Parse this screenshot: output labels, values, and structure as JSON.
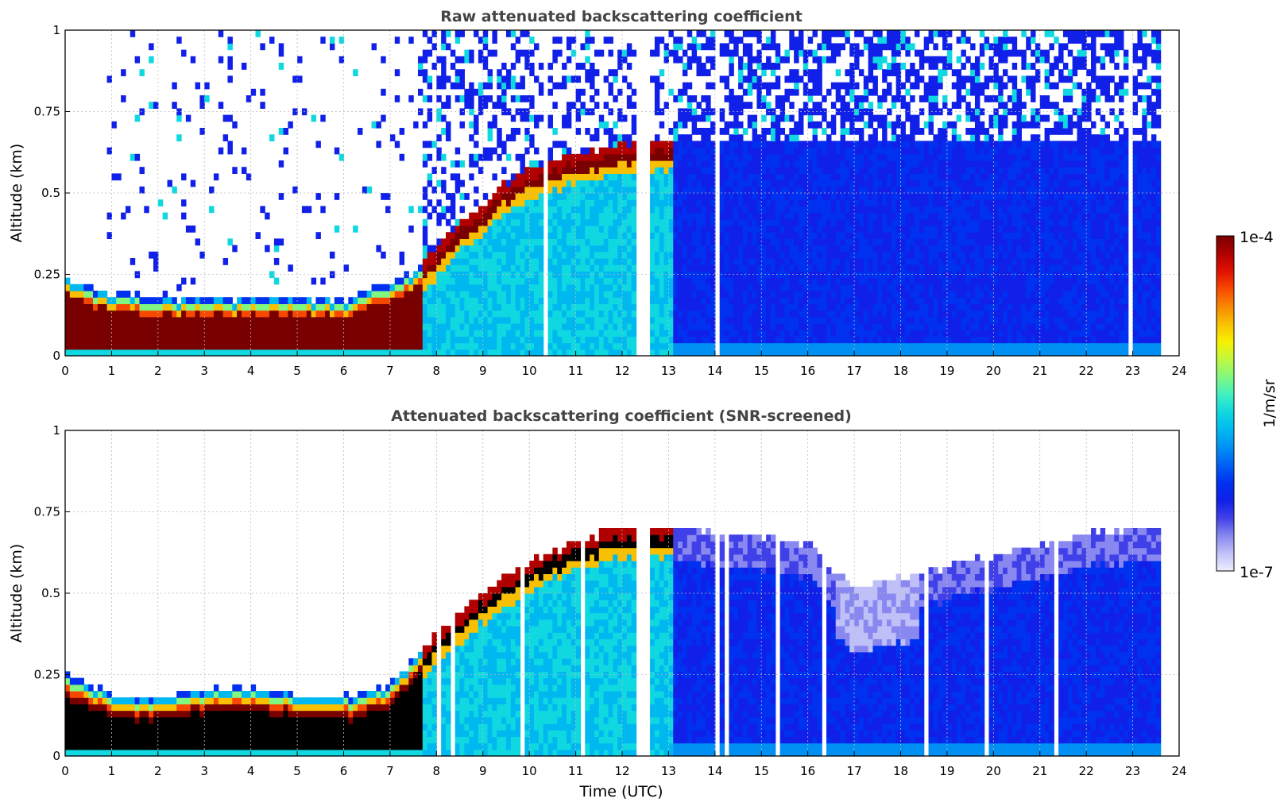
{
  "chart_data": [
    {
      "type": "heatmap",
      "title": "Raw attenuated backscattering coefficient",
      "xlabel": "",
      "ylabel": "Altitude (km)",
      "xlim": [
        0,
        24
      ],
      "ylim": [
        0,
        1
      ],
      "xticks": [
        "0",
        "1",
        "2",
        "3",
        "4",
        "5",
        "6",
        "7",
        "8",
        "9",
        "10",
        "11",
        "12",
        "13",
        "14",
        "15",
        "16",
        "17",
        "18",
        "19",
        "20",
        "21",
        "22",
        "23",
        "24"
      ],
      "yticks": [
        "0",
        "0.25",
        "0.5",
        "0.75",
        "1"
      ],
      "data_end_time": 23.6,
      "screened": false,
      "boundary_layer_top_km": [
        {
          "t": 0,
          "h": 0.24
        },
        {
          "t": 0.5,
          "h": 0.21
        },
        {
          "t": 1,
          "h": 0.19
        },
        {
          "t": 2,
          "h": 0.18
        },
        {
          "t": 3,
          "h": 0.17
        },
        {
          "t": 4,
          "h": 0.18
        },
        {
          "t": 5,
          "h": 0.18
        },
        {
          "t": 6,
          "h": 0.17
        },
        {
          "t": 7,
          "h": 0.22
        },
        {
          "t": 7.5,
          "h": 0.26
        },
        {
          "t": 8,
          "h": 0.33
        },
        {
          "t": 8.5,
          "h": 0.41
        },
        {
          "t": 9,
          "h": 0.47
        },
        {
          "t": 9.5,
          "h": 0.53
        },
        {
          "t": 10,
          "h": 0.57
        },
        {
          "t": 10.5,
          "h": 0.6
        },
        {
          "t": 11,
          "h": 0.62
        },
        {
          "t": 12,
          "h": 0.65
        },
        {
          "t": 13,
          "h": 0.66
        }
      ]
    },
    {
      "type": "heatmap",
      "title": "Attenuated backscattering coefficient (SNR-screened)",
      "xlabel": "Time (UTC)",
      "ylabel": "Altitude (km)",
      "xlim": [
        0,
        24
      ],
      "ylim": [
        0,
        1
      ],
      "xticks": [
        "0",
        "1",
        "2",
        "3",
        "4",
        "5",
        "6",
        "7",
        "8",
        "9",
        "10",
        "11",
        "12",
        "13",
        "14",
        "15",
        "16",
        "17",
        "18",
        "19",
        "20",
        "21",
        "22",
        "23",
        "24"
      ],
      "yticks": [
        "0",
        "0.25",
        "0.5",
        "0.75",
        "1"
      ],
      "data_end_time": 23.6,
      "screened": true,
      "boundary_layer_top_km": [
        {
          "t": 0,
          "h": 0.25
        },
        {
          "t": 1,
          "h": 0.19
        },
        {
          "t": 2,
          "h": 0.18
        },
        {
          "t": 3,
          "h": 0.2
        },
        {
          "t": 4,
          "h": 0.21
        },
        {
          "t": 5,
          "h": 0.19
        },
        {
          "t": 6,
          "h": 0.18
        },
        {
          "t": 7,
          "h": 0.22
        },
        {
          "t": 8,
          "h": 0.38
        },
        {
          "t": 9,
          "h": 0.5
        },
        {
          "t": 10,
          "h": 0.6
        },
        {
          "t": 11,
          "h": 0.66
        },
        {
          "t": 12,
          "h": 0.7
        },
        {
          "t": 13,
          "h": 0.7
        },
        {
          "t": 14,
          "h": 0.68
        },
        {
          "t": 15,
          "h": 0.68
        },
        {
          "t": 16,
          "h": 0.65
        },
        {
          "t": 17,
          "h": 0.52
        },
        {
          "t": 18,
          "h": 0.55
        },
        {
          "t": 19,
          "h": 0.58
        },
        {
          "t": 20,
          "h": 0.62
        },
        {
          "t": 21,
          "h": 0.65
        },
        {
          "t": 22,
          "h": 0.68
        },
        {
          "t": 23,
          "h": 0.7
        }
      ]
    }
  ],
  "colorbar": {
    "label": "1/m/sr",
    "max_label": "1e-4",
    "min_label": "1e-7",
    "colors": [
      "#eeeeff",
      "#c0c0f8",
      "#8888f0",
      "#4040e8",
      "#1020e8",
      "#0030f0",
      "#0060f4",
      "#0090f4",
      "#00b8f0",
      "#10d8e0",
      "#40f0c0",
      "#80f880",
      "#c0f840",
      "#f8f000",
      "#f8c000",
      "#f88800",
      "#f84800",
      "#e01000",
      "#b00000",
      "#780000"
    ]
  }
}
